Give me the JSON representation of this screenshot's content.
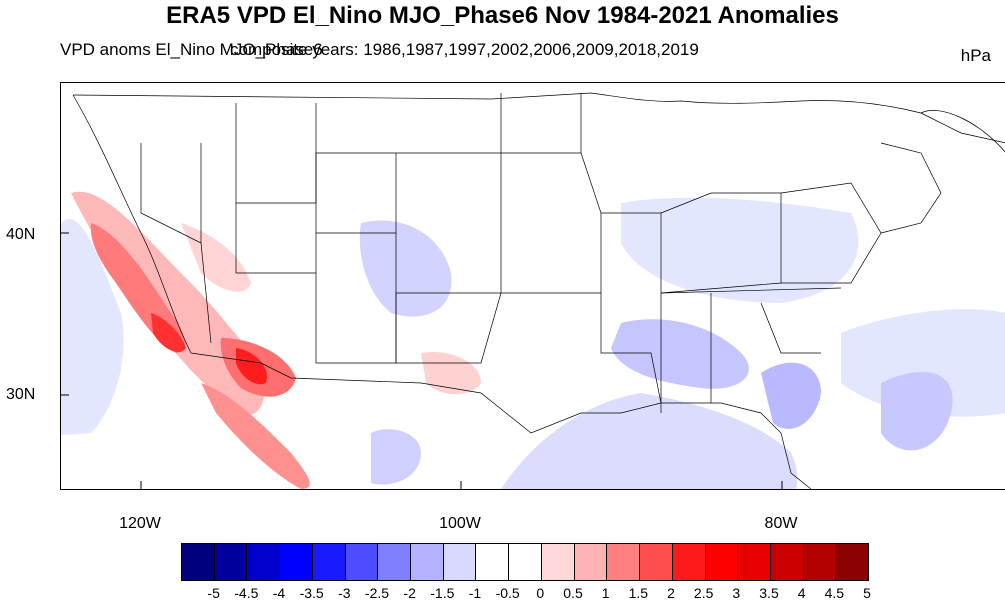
{
  "title": "ERA5 VPD El_Nino MJO_Phase6 Nov 1984-2021 Anomalies",
  "subtitle_left": "VPD anoms El_Nino MJO_Phase6",
  "subtitle_overlay": "composite years: 1986,1987,1997,2002,2006,2009,2018,2019",
  "units": "hPa",
  "lat_labels": [
    "40N",
    "30N"
  ],
  "lon_labels": [
    "120W",
    "100W",
    "80W"
  ],
  "colorbar": {
    "colors": [
      "#00007f",
      "#00009f",
      "#0000cc",
      "#0000ff",
      "#1a1aff",
      "#4d4dff",
      "#8080ff",
      "#b3b3ff",
      "#d9d9ff",
      "#ffffff",
      "#ffffff",
      "#ffd9d9",
      "#ffb3b3",
      "#ff8080",
      "#ff4d4d",
      "#ff1a1a",
      "#ff0000",
      "#e60000",
      "#cc0000",
      "#b30000",
      "#8b0000"
    ],
    "labels": [
      "-5",
      "-4.5",
      "-4",
      "-3.5",
      "-3",
      "-2.5",
      "-2",
      "-1.5",
      "-1",
      "-0.5",
      "0",
      "0.5",
      "1",
      "1.5",
      "2",
      "2.5",
      "3",
      "3.5",
      "4",
      "4.5",
      "5"
    ]
  }
}
